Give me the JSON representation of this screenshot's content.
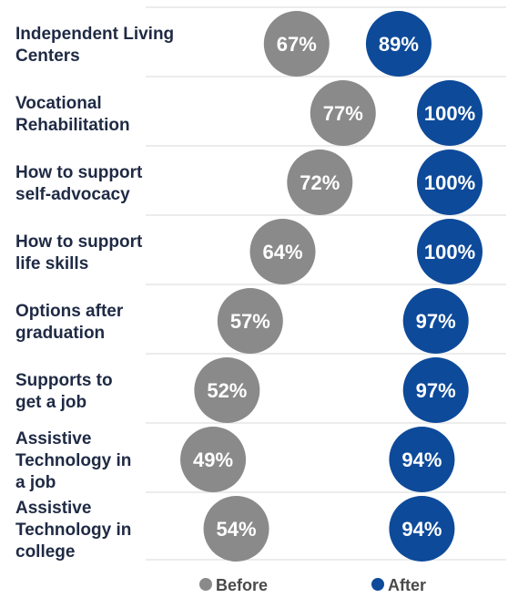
{
  "chart_data": {
    "type": "scatter",
    "categories": [
      [
        "Independent Living",
        "Centers"
      ],
      [
        "Vocational",
        "Rehabilitation"
      ],
      [
        "How to support",
        "self-advocacy"
      ],
      [
        "How to support",
        "life skills"
      ],
      [
        "Options after",
        "graduation"
      ],
      [
        "Supports to",
        "get a job"
      ],
      [
        "Assistive",
        "Technology in",
        "a job"
      ],
      [
        "Assistive",
        "Technology in",
        "college"
      ]
    ],
    "series": [
      {
        "name": "Before",
        "color": "#8a8a8a",
        "values": [
          67,
          77,
          72,
          64,
          57,
          52,
          49,
          54
        ]
      },
      {
        "name": "After",
        "color": "#0d4a9a",
        "values": [
          89,
          100,
          100,
          100,
          97,
          97,
          94,
          94
        ]
      }
    ],
    "value_suffix": "%",
    "xlim": [
      38,
      100
    ],
    "grid": true,
    "legend_position": "bottom"
  }
}
